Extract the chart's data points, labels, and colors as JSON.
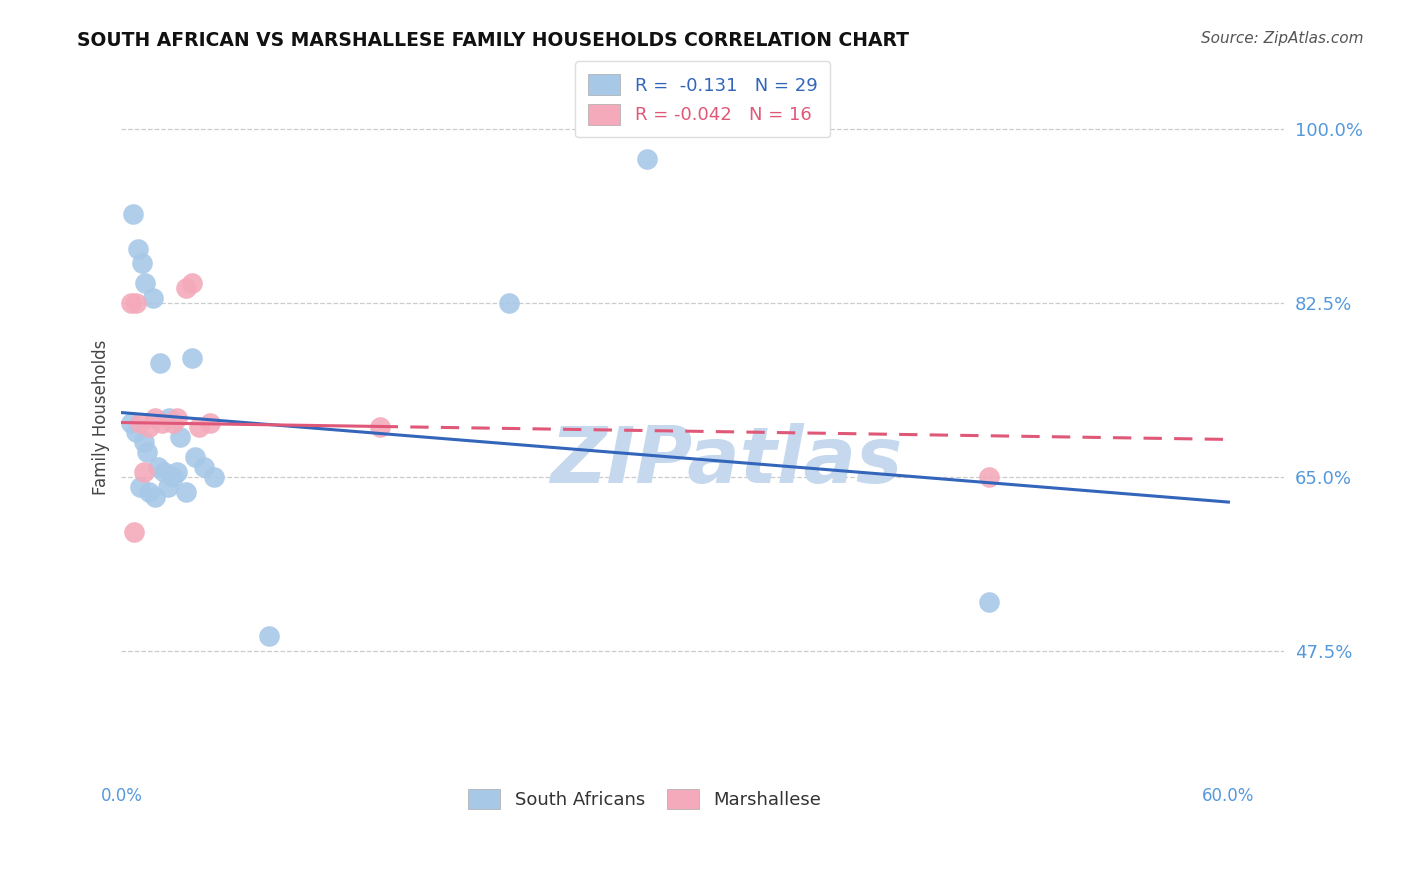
{
  "title": "SOUTH AFRICAN VS MARSHALLESE FAMILY HOUSEHOLDS CORRELATION CHART",
  "source": "Source: ZipAtlas.com",
  "ylabel": "Family Households",
  "xlim": [
    0.0,
    63.0
  ],
  "ylim": [
    35.0,
    107.0
  ],
  "yticks": [
    47.5,
    65.0,
    82.5,
    100.0
  ],
  "xticks": [
    0.0,
    15.0,
    30.0,
    45.0,
    60.0
  ],
  "blue_r": "-0.131",
  "blue_n": "29",
  "pink_r": "-0.042",
  "pink_n": "16",
  "blue_color": "#A8C8E8",
  "pink_color": "#F4AABB",
  "blue_line_color": "#3366BB",
  "pink_line_color": "#E05878",
  "axis_color": "#5599DD",
  "background_color": "#ffffff",
  "grid_color": "#cccccc",
  "blue_points_x": [
    0.5,
    0.8,
    1.2,
    1.4,
    2.0,
    2.3,
    2.8,
    1.0,
    1.5,
    1.8,
    2.5,
    3.0,
    3.5,
    0.6,
    0.9,
    1.1,
    1.3,
    1.7,
    2.1,
    2.6,
    3.2,
    4.0,
    4.5,
    5.0,
    3.8,
    8.0,
    21.0,
    28.5,
    47.0
  ],
  "blue_points_y": [
    70.5,
    69.5,
    68.5,
    67.5,
    66.0,
    65.5,
    65.0,
    64.0,
    63.5,
    63.0,
    64.0,
    65.5,
    63.5,
    91.5,
    88.0,
    86.5,
    84.5,
    83.0,
    76.5,
    71.0,
    69.0,
    67.0,
    66.0,
    65.0,
    77.0,
    49.0,
    82.5,
    97.0,
    52.5
  ],
  "pink_points_x": [
    0.5,
    0.8,
    1.0,
    1.5,
    1.8,
    2.2,
    3.5,
    3.8,
    4.2,
    4.8,
    0.7,
    1.2,
    2.8,
    3.0,
    14.0,
    47.0
  ],
  "pink_points_y": [
    82.5,
    82.5,
    70.5,
    70.0,
    71.0,
    70.5,
    84.0,
    84.5,
    70.0,
    70.5,
    59.5,
    65.5,
    70.5,
    71.0,
    70.0,
    65.0
  ],
  "blue_line_x0": 0.0,
  "blue_line_x1": 60.0,
  "blue_line_y0": 71.5,
  "blue_line_y1": 62.5,
  "pink_line_x0": 0.0,
  "pink_line_x1": 60.0,
  "pink_line_y0": 70.5,
  "pink_line_y1": 68.8,
  "pink_line_solid_end": 14.0,
  "watermark": "ZIPatlas",
  "watermark_color": "#C5D8EE",
  "legend_label_blue": "South Africans",
  "legend_label_pink": "Marshallese"
}
